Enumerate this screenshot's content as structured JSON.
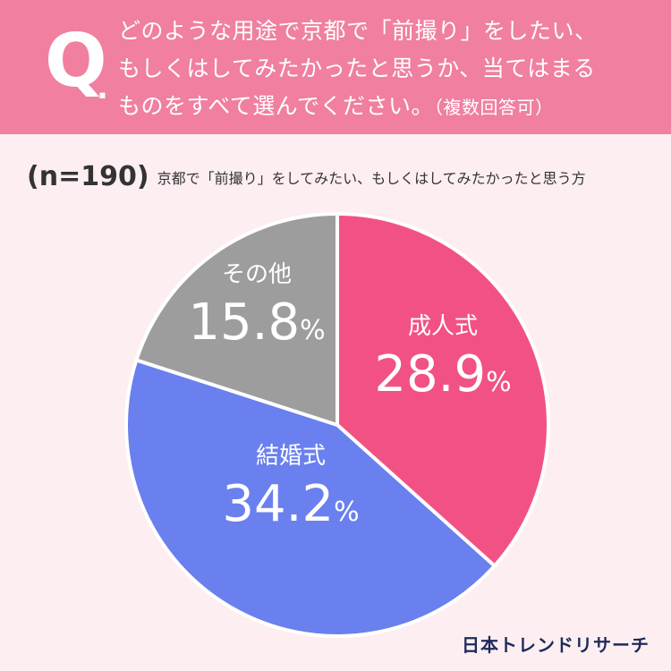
{
  "header": {
    "q_label": "Q",
    "q_dot": ".",
    "question_lines": [
      "どのような用途で京都で「前撮り」をしたい、",
      "もしくはしてみたかったと思うか、当てはまる",
      "ものをすべて選んでください。"
    ],
    "question_note": "（複数回答可）"
  },
  "subtitle": {
    "n": "(n=190)",
    "description": "京都で「前撮り」をしてみたい、もしくはしてみたかったと思う方"
  },
  "chart_data": {
    "type": "pie",
    "unit": "%",
    "slices": [
      {
        "label": "成人式",
        "value": 28.9,
        "color": "#f25283"
      },
      {
        "label": "結婚式",
        "value": 34.2,
        "color": "#6a80ee"
      },
      {
        "label": "その他",
        "value": 15.8,
        "color": "#9d9d9d"
      }
    ],
    "start": "12 o'clock, clockwise"
  },
  "logo": "日本トレンドリサーチ"
}
